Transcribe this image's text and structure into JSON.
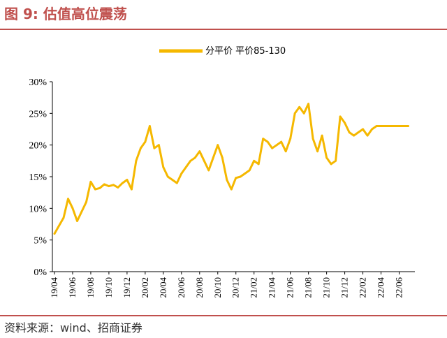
{
  "header": {
    "title": "图 9:  估值高位震荡"
  },
  "footer": {
    "source": "资料来源：wind、招商证券"
  },
  "chart_data": {
    "type": "line",
    "title": "",
    "xlabel": "",
    "ylabel": "",
    "ylim": [
      0,
      30
    ],
    "yticks": [
      "0%",
      "5%",
      "10%",
      "15%",
      "20%",
      "25%",
      "30%"
    ],
    "xticks": [
      "19/04",
      "19/06",
      "19/08",
      "19/10",
      "19/12",
      "20/02",
      "20/04",
      "20/06",
      "20/08",
      "20/10",
      "20/12",
      "21/02",
      "21/04",
      "21/06",
      "21/08",
      "21/10",
      "21/12",
      "22/02",
      "22/04",
      "22/06"
    ],
    "legend_position": "top-center",
    "grid": false,
    "color": "#f5b800",
    "series": [
      {
        "name": "分平价 平价85-130",
        "x": [
          "19/04",
          "19/05",
          "19/05",
          "19/06",
          "19/06",
          "19/07",
          "19/07",
          "19/08",
          "19/08",
          "19/09",
          "19/09",
          "19/10",
          "19/10",
          "19/11",
          "19/11",
          "19/12",
          "19/12",
          "20/01",
          "20/01",
          "20/02",
          "20/02",
          "20/03",
          "20/03",
          "20/04",
          "20/04",
          "20/05",
          "20/05",
          "20/06",
          "20/06",
          "20/07",
          "20/07",
          "20/08",
          "20/08",
          "20/09",
          "20/09",
          "20/10",
          "20/10",
          "20/11",
          "20/11",
          "20/12",
          "20/12",
          "21/01",
          "21/01",
          "21/02",
          "21/02",
          "21/03",
          "21/03",
          "21/04",
          "21/04",
          "21/05",
          "21/05",
          "21/06",
          "21/06",
          "21/07",
          "21/07",
          "21/08",
          "21/08",
          "21/09",
          "21/09",
          "21/10",
          "21/10",
          "21/11",
          "21/11",
          "21/12",
          "21/12",
          "22/01",
          "22/01",
          "22/02",
          "22/02",
          "22/03",
          "22/03",
          "22/04",
          "22/04",
          "22/05",
          "22/05",
          "22/06",
          "22/06",
          "22/07"
        ],
        "values": [
          6.0,
          8.5,
          11.5,
          10.0,
          8.0,
          9.5,
          11.0,
          14.2,
          13.0,
          13.2,
          13.8,
          13.5,
          13.7,
          13.3,
          14.0,
          14.5,
          13.0,
          17.5,
          19.5,
          20.5,
          23.0,
          19.5,
          20.0,
          16.5,
          15.0,
          14.5,
          14.0,
          15.5,
          16.5,
          17.5,
          18.0,
          19.0,
          17.5,
          16.0,
          18.0,
          20.0,
          18.0,
          14.5,
          13.0,
          14.8,
          15.0,
          15.5,
          16.0,
          17.5,
          17.0,
          21.0,
          20.5,
          19.5,
          20.0,
          20.5,
          19.0,
          21.0,
          25.0,
          26.0,
          25.0,
          26.5,
          21.0,
          19.0,
          21.5,
          18.0,
          17.0,
          17.5,
          24.5,
          23.5,
          22.0,
          21.5,
          22.0,
          22.5,
          21.5,
          22.5,
          23.0,
          23.0,
          23.0,
          23.0,
          23.0,
          23.0,
          23.0,
          23.0
        ]
      }
    ]
  }
}
